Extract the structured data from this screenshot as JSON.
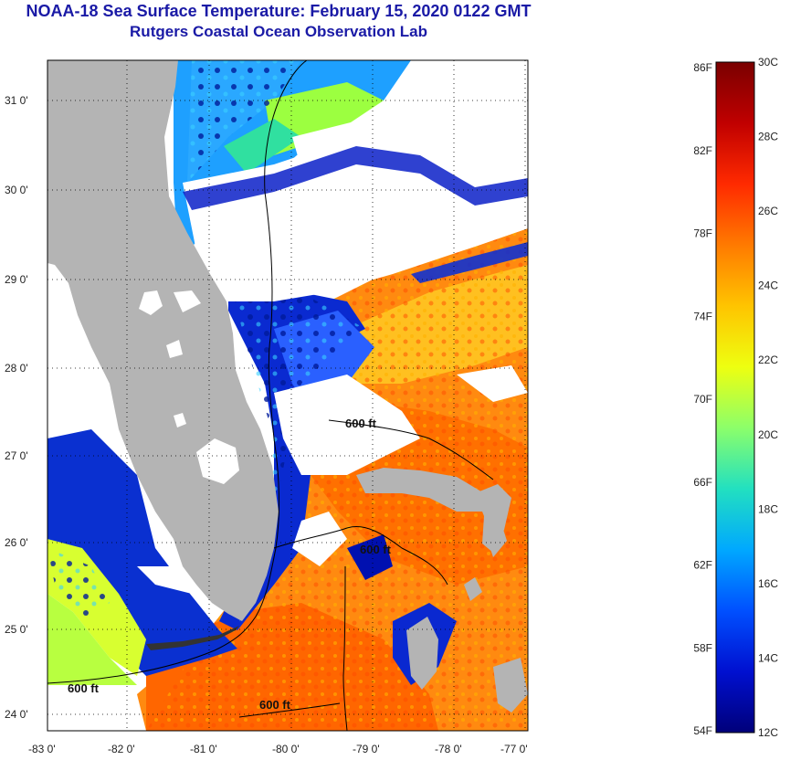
{
  "title": "NOAA-18 Sea Surface Temperature:  February 15, 2020 0122 GMT",
  "subtitle": "Rutgers Coastal Ocean Observation Lab",
  "map": {
    "lon_ticks": [
      "-83 0'",
      "-82 0'",
      "-81 0'",
      "-80 0'",
      "-79 0'",
      "-78 0'",
      "-77 0'"
    ],
    "lat_ticks": [
      "31 0'",
      "30 0'",
      "29 0'",
      "28 0'",
      "27 0'",
      "26 0'",
      "25 0'",
      "24 0'"
    ],
    "contour_labels": [
      "600 ft",
      "600 ft",
      "600 ft",
      "600 ft"
    ],
    "colors": {
      "land": "#b4b4b4",
      "cloud": "#ffffff",
      "frame": "#000000"
    }
  },
  "colorbar": {
    "fahrenheit": [
      "86F",
      "82F",
      "78F",
      "74F",
      "70F",
      "66F",
      "62F",
      "58F",
      "54F"
    ],
    "celsius": [
      "30C",
      "28C",
      "26C",
      "24C",
      "22C",
      "20C",
      "18C",
      "16C",
      "14C",
      "12C"
    ],
    "stops": [
      "#7a0000",
      "#c00000",
      "#ff2a00",
      "#ff7a00",
      "#ffc400",
      "#eeff10",
      "#8cff6a",
      "#22e0c0",
      "#00a8ff",
      "#0050ff",
      "#0010d0",
      "#00007a"
    ]
  }
}
